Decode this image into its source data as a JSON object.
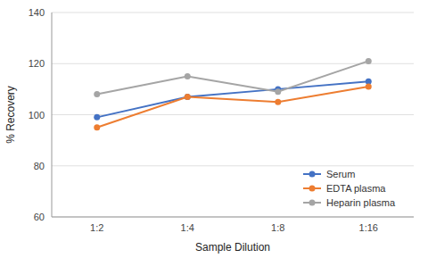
{
  "chart_data": {
    "type": "line",
    "xlabel": "Sample Dilution",
    "ylabel": "% Recovery",
    "categories": [
      "1:2",
      "1:4",
      "1:8",
      "1:16"
    ],
    "series": [
      {
        "name": "Serum",
        "color": "#4472C4",
        "values": [
          99,
          107,
          110,
          113
        ]
      },
      {
        "name": "EDTA plasma",
        "color": "#ED7D31",
        "values": [
          95,
          107,
          105,
          111
        ]
      },
      {
        "name": "Heparin plasma",
        "color": "#A5A5A5",
        "values": [
          108,
          115,
          109,
          121
        ]
      }
    ],
    "marker": "circle",
    "ylim": [
      60,
      140
    ],
    "yticks": [
      60,
      80,
      100,
      120,
      140
    ],
    "grid": true,
    "legend": "lower right"
  }
}
